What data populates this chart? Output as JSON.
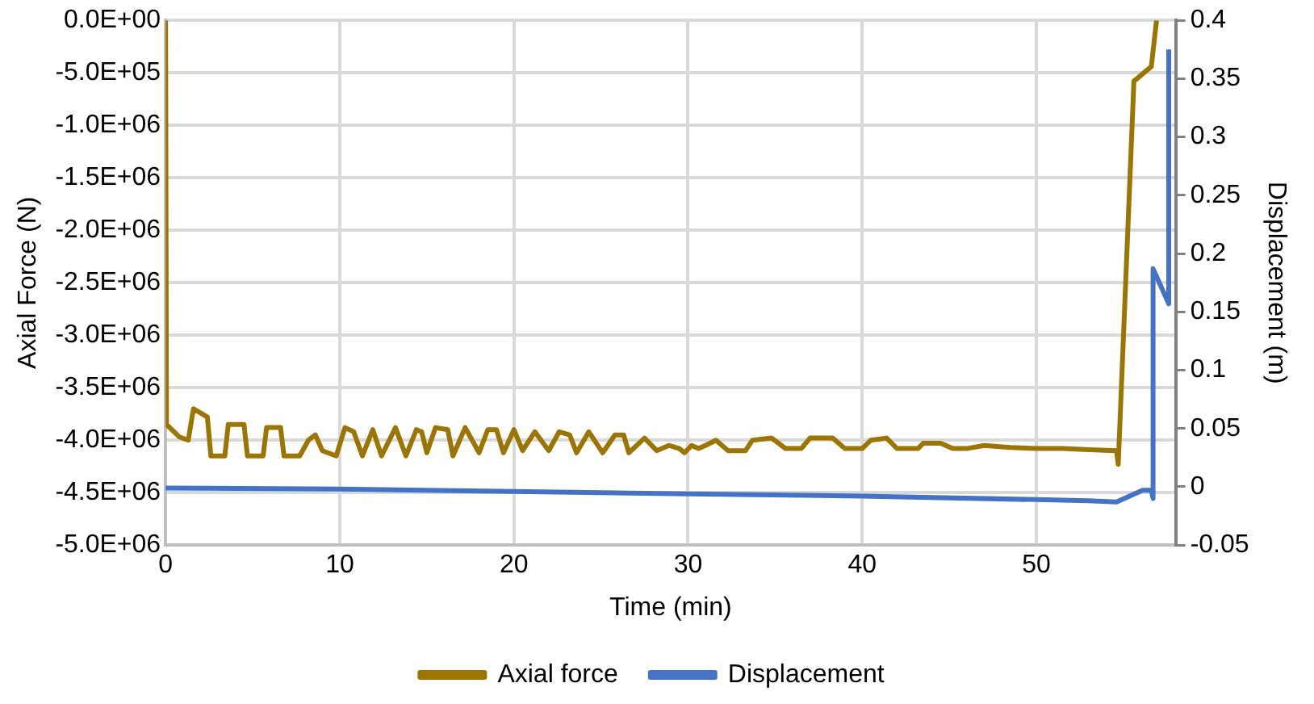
{
  "chart_data": {
    "type": "line",
    "xlabel": "Time (min)",
    "ylabel": "Axial Force (N)",
    "y2label": "Displacement (m)",
    "xlim": [
      0,
      58
    ],
    "xticks": [
      0,
      10,
      20,
      30,
      40,
      50
    ],
    "ylim": [
      -5000000,
      0
    ],
    "yticks": [
      {
        "value": -5000000,
        "label": "-5.0E+06"
      },
      {
        "value": -4500000,
        "label": "-4.5E+06"
      },
      {
        "value": -4000000,
        "label": "-4.0E+06"
      },
      {
        "value": -3500000,
        "label": "-3.5E+06"
      },
      {
        "value": -3000000,
        "label": "-3.0E+06"
      },
      {
        "value": -2500000,
        "label": "-2.5E+06"
      },
      {
        "value": -2000000,
        "label": "-2.0E+06"
      },
      {
        "value": -1500000,
        "label": "-1.5E+06"
      },
      {
        "value": -1000000,
        "label": "-1.0E+06"
      },
      {
        "value": -500000,
        "label": "-5.0E+05"
      },
      {
        "value": 0,
        "label": "0.0E+00"
      }
    ],
    "y2lim": [
      -0.05,
      0.4
    ],
    "y2ticks": [
      -0.05,
      0,
      0.05,
      0.1,
      0.15,
      0.2,
      0.25,
      0.3,
      0.35,
      0.4
    ],
    "grid": true,
    "legend": "bottom",
    "marker": "none",
    "line_style": "solid",
    "series": [
      {
        "name": "Axial force",
        "color": "#9c7500",
        "x": [
          0,
          0.05,
          0.8,
          1.3,
          1.6,
          2.4,
          2.6,
          3.4,
          3.6,
          4.5,
          4.7,
          5.6,
          5.8,
          6.6,
          6.8,
          7.7,
          8.2,
          8.6,
          9.0,
          9.8,
          10.3,
          10.8,
          11.3,
          11.9,
          12.4,
          13.2,
          13.8,
          14.4,
          14.7,
          15.0,
          15.5,
          16.2,
          16.5,
          17.2,
          18.0,
          18.5,
          19.0,
          19.4,
          20.0,
          20.5,
          21.2,
          22.0,
          22.6,
          23.2,
          23.6,
          24.3,
          25.1,
          25.8,
          26.3,
          26.6,
          27.5,
          28.2,
          28.9,
          29.5,
          29.8,
          30.2,
          30.6,
          31.0,
          31.6,
          32.3,
          33.3,
          33.7,
          34.8,
          35.6,
          36.5,
          37.0,
          38.3,
          39.0,
          40.0,
          40.5,
          41.4,
          42.0,
          43.2,
          43.5,
          44.5,
          45.2,
          46.0,
          47.0,
          48.5,
          50.0,
          51.5,
          53.0,
          54.6,
          54.7,
          55.6,
          56.6,
          56.9
        ],
        "values": [
          0,
          -3850000,
          -3970000,
          -4000000,
          -3700000,
          -3780000,
          -4150000,
          -4150000,
          -3850000,
          -3850000,
          -4150000,
          -4150000,
          -3880000,
          -3880000,
          -4150000,
          -4150000,
          -4000000,
          -3950000,
          -4100000,
          -4150000,
          -3880000,
          -3920000,
          -4150000,
          -3900000,
          -4150000,
          -3880000,
          -4150000,
          -3900000,
          -3920000,
          -4120000,
          -3880000,
          -3900000,
          -4150000,
          -3880000,
          -4120000,
          -3900000,
          -3900000,
          -4120000,
          -3900000,
          -4100000,
          -3920000,
          -4100000,
          -3920000,
          -3950000,
          -4120000,
          -3920000,
          -4120000,
          -3950000,
          -3950000,
          -4120000,
          -3980000,
          -4100000,
          -4050000,
          -4080000,
          -4120000,
          -4050000,
          -4080000,
          -4050000,
          -4000000,
          -4100000,
          -4100000,
          -4000000,
          -3980000,
          -4080000,
          -4080000,
          -3980000,
          -3980000,
          -4080000,
          -4080000,
          -4000000,
          -3980000,
          -4080000,
          -4080000,
          -4030000,
          -4030000,
          -4080000,
          -4080000,
          -4050000,
          -4070000,
          -4080000,
          -4080000,
          -4090000,
          -4100000,
          -4230000,
          -580000,
          -440000,
          0
        ]
      },
      {
        "name": "Displacement",
        "color": "#4472c4",
        "axis": "y2",
        "x": [
          0,
          10,
          20,
          30,
          40,
          50,
          53,
          54.6,
          56.1,
          56.6,
          56.7,
          56.7,
          57.6,
          57.6
        ],
        "values": [
          -0.001,
          -0.002,
          -0.004,
          -0.006,
          -0.008,
          -0.011,
          -0.012,
          -0.013,
          -0.003,
          -0.003,
          -0.01,
          0.187,
          0.157,
          0.375
        ]
      }
    ]
  }
}
